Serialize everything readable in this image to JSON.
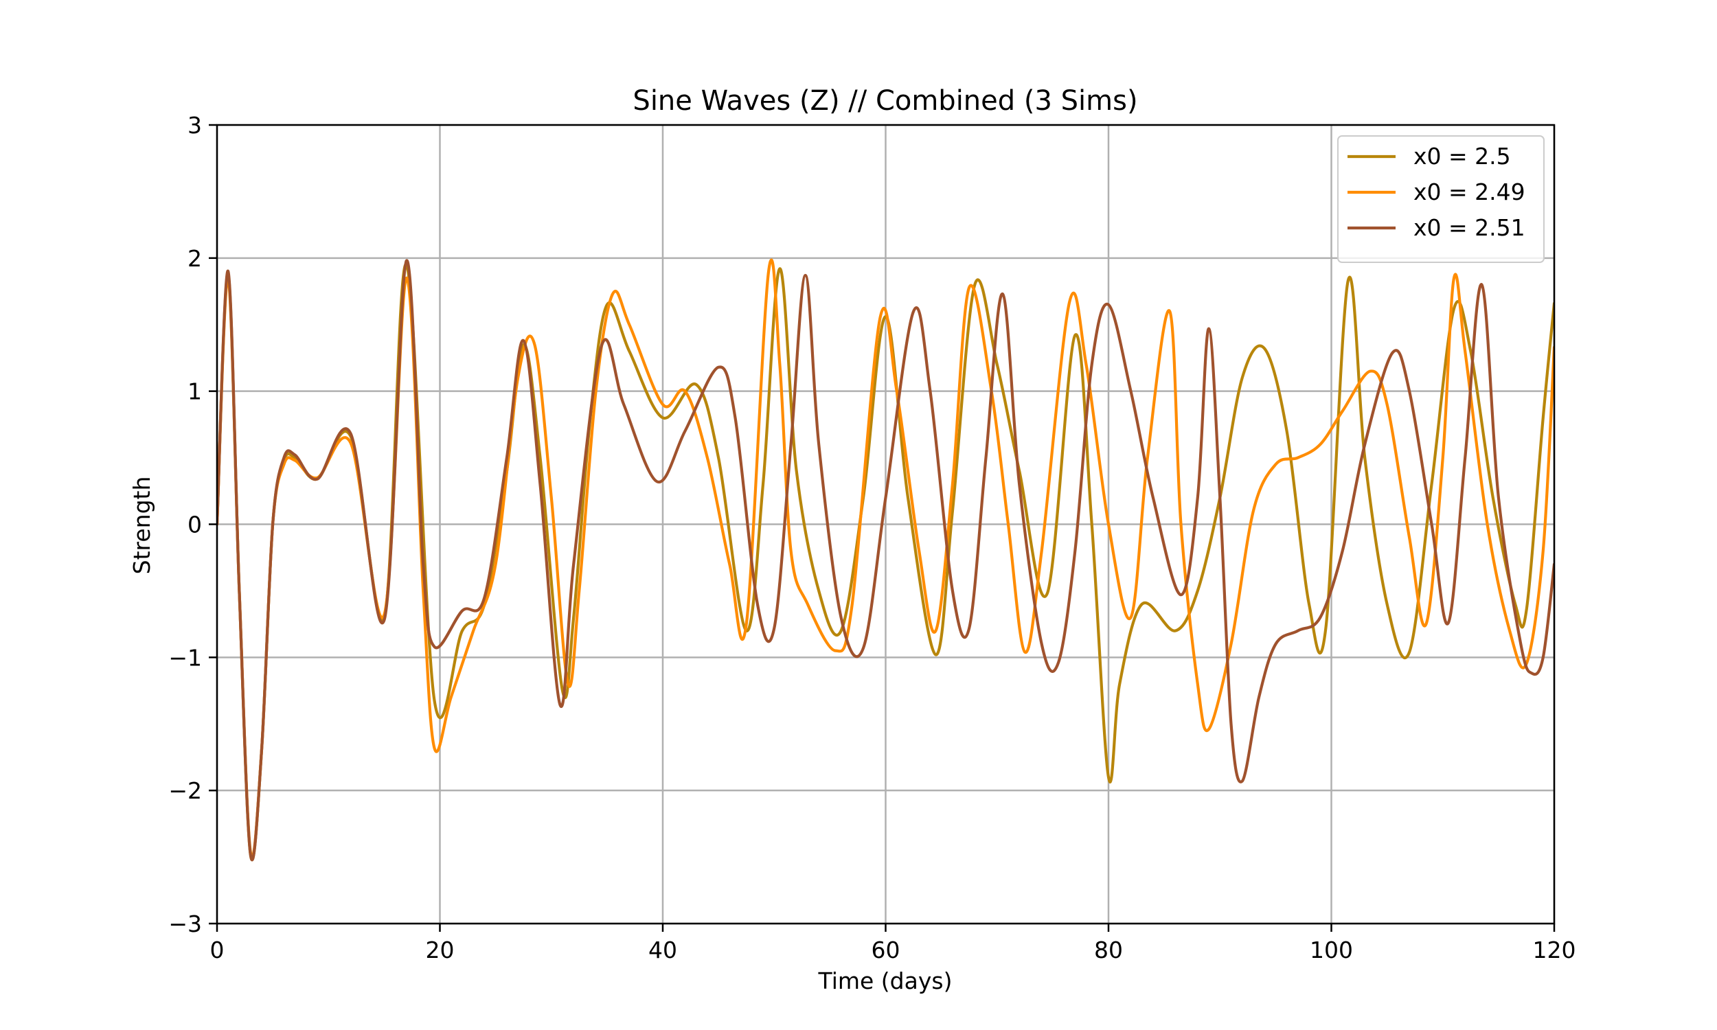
{
  "chart_data": {
    "type": "line",
    "title": "Sine Waves (Z) // Combined (3 Sims)",
    "xlabel": "Time (days)",
    "ylabel": "Strength",
    "xlim": [
      0,
      120
    ],
    "ylim": [
      -3,
      3
    ],
    "xticks": [
      0,
      20,
      40,
      60,
      80,
      100,
      120
    ],
    "xtick_labels": [
      "0",
      "20",
      "40",
      "60",
      "80",
      "100",
      "120"
    ],
    "yticks": [
      -3,
      -2,
      -1,
      0,
      1,
      2,
      3
    ],
    "ytick_labels": [
      "−3",
      "−2",
      "−1",
      "0",
      "1",
      "2",
      "3"
    ],
    "grid": true,
    "legend_position": "top-right",
    "series": [
      {
        "name": "x0 = 2.5",
        "color": "#b8860b",
        "points": [
          [
            0,
            0
          ],
          [
            1,
            1.88
          ],
          [
            2,
            -0.5
          ],
          [
            3,
            -2.48
          ],
          [
            4,
            -1.7
          ],
          [
            5,
            0.0
          ],
          [
            6,
            0.48
          ],
          [
            7,
            0.5
          ],
          [
            9,
            0.34
          ],
          [
            12,
            0.66
          ],
          [
            15,
            -0.7
          ],
          [
            17,
            1.95
          ],
          [
            19.5,
            -1.32
          ],
          [
            22,
            -0.8
          ],
          [
            24,
            -0.6
          ],
          [
            26,
            0.4
          ],
          [
            27.5,
            1.35
          ],
          [
            29,
            0.5
          ],
          [
            31,
            -1.25
          ],
          [
            32,
            -0.7
          ],
          [
            33.5,
            0.8
          ],
          [
            35,
            1.65
          ],
          [
            37,
            1.3
          ],
          [
            40,
            0.8
          ],
          [
            43,
            1.05
          ],
          [
            45,
            0.5
          ],
          [
            47.5,
            -0.8
          ],
          [
            49,
            0.3
          ],
          [
            50.5,
            1.92
          ],
          [
            52,
            0.4
          ],
          [
            54,
            -0.5
          ],
          [
            56,
            -0.8
          ],
          [
            58,
            0.2
          ],
          [
            60,
            1.56
          ],
          [
            62,
            0.2
          ],
          [
            64.5,
            -0.98
          ],
          [
            66,
            0.1
          ],
          [
            68,
            1.8
          ],
          [
            70,
            1.2
          ],
          [
            72,
            0.4
          ],
          [
            74.5,
            -0.52
          ],
          [
            77,
            1.42
          ],
          [
            78.5,
            0.0
          ],
          [
            80,
            -1.9
          ],
          [
            81,
            -1.2
          ],
          [
            83,
            -0.6
          ],
          [
            86,
            -0.8
          ],
          [
            88,
            -0.5
          ],
          [
            90,
            0.2
          ],
          [
            92,
            1.1
          ],
          [
            94,
            1.32
          ],
          [
            96,
            0.7
          ],
          [
            98,
            -0.6
          ],
          [
            99.5,
            -0.78
          ],
          [
            101.5,
            1.83
          ],
          [
            103,
            0.5
          ],
          [
            105,
            -0.6
          ],
          [
            107,
            -0.96
          ],
          [
            109,
            0.3
          ],
          [
            111,
            1.62
          ],
          [
            112.5,
            1.3
          ],
          [
            114.5,
            0.2
          ],
          [
            116.5,
            -0.6
          ],
          [
            117.5,
            -0.65
          ],
          [
            119,
            0.8
          ],
          [
            120,
            1.66
          ]
        ]
      },
      {
        "name": "x0 = 2.49",
        "color": "#ff8c00",
        "points": [
          [
            0,
            0
          ],
          [
            1,
            1.85
          ],
          [
            2,
            -0.5
          ],
          [
            3,
            -2.46
          ],
          [
            4,
            -1.7
          ],
          [
            5,
            0.0
          ],
          [
            6,
            0.45
          ],
          [
            7,
            0.48
          ],
          [
            9,
            0.35
          ],
          [
            12,
            0.61
          ],
          [
            15,
            -0.68
          ],
          [
            17,
            1.85
          ],
          [
            18.5,
            -0.5
          ],
          [
            19.5,
            -1.68
          ],
          [
            21,
            -1.3
          ],
          [
            23,
            -0.8
          ],
          [
            25,
            -0.3
          ],
          [
            27,
            1.1
          ],
          [
            28.5,
            1.35
          ],
          [
            30,
            0.2
          ],
          [
            31.5,
            -1.2
          ],
          [
            32.5,
            -0.5
          ],
          [
            34,
            1.0
          ],
          [
            35.5,
            1.73
          ],
          [
            37,
            1.5
          ],
          [
            40,
            0.9
          ],
          [
            42,
            1.0
          ],
          [
            44,
            0.5
          ],
          [
            46,
            -0.3
          ],
          [
            47.5,
            -0.75
          ],
          [
            49.5,
            1.9
          ],
          [
            50.5,
            1.2
          ],
          [
            51.5,
            -0.2
          ],
          [
            53,
            -0.6
          ],
          [
            55.5,
            -0.95
          ],
          [
            57,
            -0.6
          ],
          [
            59.5,
            1.55
          ],
          [
            61,
            1.0
          ],
          [
            63,
            -0.2
          ],
          [
            64.5,
            -0.8
          ],
          [
            66,
            0.3
          ],
          [
            67.5,
            1.78
          ],
          [
            69.5,
            1.0
          ],
          [
            71,
            0.0
          ],
          [
            72.5,
            -0.96
          ],
          [
            74,
            -0.2
          ],
          [
            76.5,
            1.67
          ],
          [
            78,
            1.2
          ],
          [
            80,
            0.0
          ],
          [
            82,
            -0.7
          ],
          [
            83.5,
            0.5
          ],
          [
            85.5,
            1.6
          ],
          [
            86.5,
            0.0
          ],
          [
            88,
            -1.2
          ],
          [
            89,
            -1.54
          ],
          [
            91,
            -0.9
          ],
          [
            93,
            0.1
          ],
          [
            95,
            0.45
          ],
          [
            97,
            0.5
          ],
          [
            99,
            0.6
          ],
          [
            101,
            0.85
          ],
          [
            103.5,
            1.15
          ],
          [
            105,
            0.9
          ],
          [
            107,
            -0.1
          ],
          [
            108.5,
            -0.75
          ],
          [
            110,
            0.5
          ],
          [
            111,
            1.85
          ],
          [
            112,
            1.3
          ],
          [
            114,
            0.0
          ],
          [
            116,
            -0.8
          ],
          [
            117.5,
            -1.05
          ],
          [
            119,
            -0.2
          ],
          [
            120,
            1.33
          ]
        ]
      },
      {
        "name": "x0 = 2.51",
        "color": "#a0522d",
        "points": [
          [
            0,
            0
          ],
          [
            1,
            1.9
          ],
          [
            2,
            -0.5
          ],
          [
            3,
            -2.48
          ],
          [
            4,
            -1.7
          ],
          [
            5,
            0.0
          ],
          [
            6,
            0.5
          ],
          [
            7,
            0.52
          ],
          [
            9,
            0.34
          ],
          [
            12,
            0.68
          ],
          [
            15,
            -0.72
          ],
          [
            17,
            1.98
          ],
          [
            18.5,
            -0.3
          ],
          [
            19.5,
            -0.92
          ],
          [
            22,
            -0.65
          ],
          [
            24,
            -0.55
          ],
          [
            26,
            0.5
          ],
          [
            27.5,
            1.38
          ],
          [
            29,
            0.3
          ],
          [
            30.8,
            -1.36
          ],
          [
            32,
            -0.3
          ],
          [
            34.5,
            1.34
          ],
          [
            36.5,
            0.9
          ],
          [
            39.5,
            0.32
          ],
          [
            42,
            0.7
          ],
          [
            45,
            1.18
          ],
          [
            46.5,
            0.8
          ],
          [
            48.5,
            -0.6
          ],
          [
            50,
            -0.78
          ],
          [
            51.5,
            0.6
          ],
          [
            52.8,
            1.87
          ],
          [
            54,
            0.6
          ],
          [
            56,
            -0.7
          ],
          [
            58,
            -0.93
          ],
          [
            60,
            0.2
          ],
          [
            62.5,
            1.6
          ],
          [
            64,
            1.0
          ],
          [
            66,
            -0.5
          ],
          [
            67.5,
            -0.78
          ],
          [
            69,
            0.5
          ],
          [
            70.5,
            1.73
          ],
          [
            72,
            0.3
          ],
          [
            74,
            -0.9
          ],
          [
            75.5,
            -1.04
          ],
          [
            77,
            -0.2
          ],
          [
            78.5,
            1.2
          ],
          [
            80,
            1.65
          ],
          [
            82,
            1.0
          ],
          [
            84,
            0.2
          ],
          [
            86.5,
            -0.53
          ],
          [
            88,
            0.2
          ],
          [
            89,
            1.47
          ],
          [
            90,
            0.2
          ],
          [
            91,
            -1.5
          ],
          [
            92,
            -1.93
          ],
          [
            93.5,
            -1.3
          ],
          [
            95,
            -0.9
          ],
          [
            97,
            -0.8
          ],
          [
            99,
            -0.7
          ],
          [
            101,
            -0.2
          ],
          [
            103,
            0.6
          ],
          [
            105.5,
            1.29
          ],
          [
            107,
            1.0
          ],
          [
            109,
            0.0
          ],
          [
            110.5,
            -0.74
          ],
          [
            112,
            0.5
          ],
          [
            113.5,
            1.8
          ],
          [
            115,
            0.2
          ],
          [
            117,
            -0.9
          ],
          [
            118,
            -1.12
          ],
          [
            119,
            -1.0
          ],
          [
            120,
            -0.3
          ]
        ]
      }
    ]
  }
}
